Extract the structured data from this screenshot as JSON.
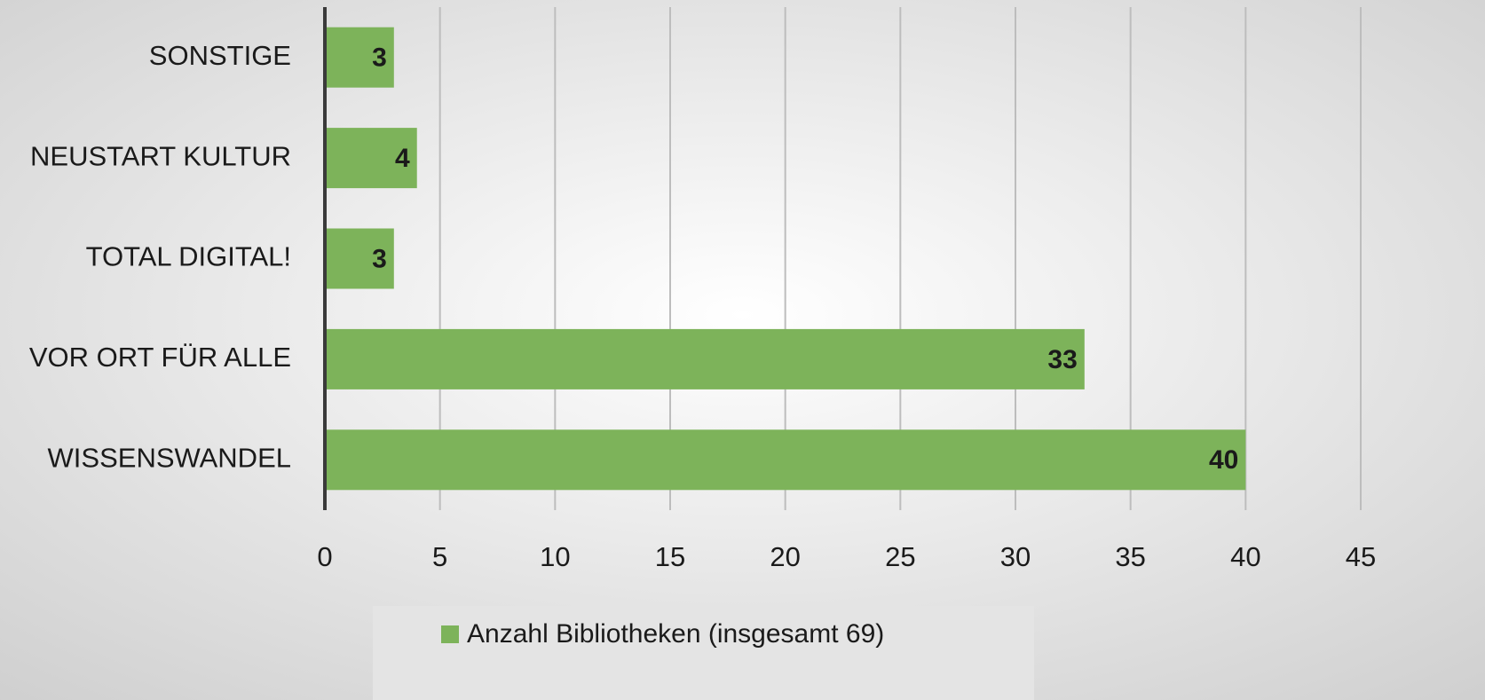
{
  "chart_data": {
    "type": "bar",
    "orientation": "horizontal",
    "categories": [
      "SONSTIGE",
      "NEUSTART KULTUR",
      "TOTAL DIGITAL!",
      "VOR ORT FÜR ALLE",
      "WISSENSWANDEL"
    ],
    "series": [
      {
        "name": "Anzahl Bibliotheken (insgesamt 69)",
        "color": "#7db35a",
        "values": [
          3,
          4,
          3,
          33,
          40
        ]
      }
    ],
    "xlim": [
      0,
      45
    ],
    "xticks": [
      0,
      5,
      10,
      15,
      20,
      25,
      30,
      35,
      40,
      45
    ],
    "grid": true,
    "legend": "bottom"
  }
}
